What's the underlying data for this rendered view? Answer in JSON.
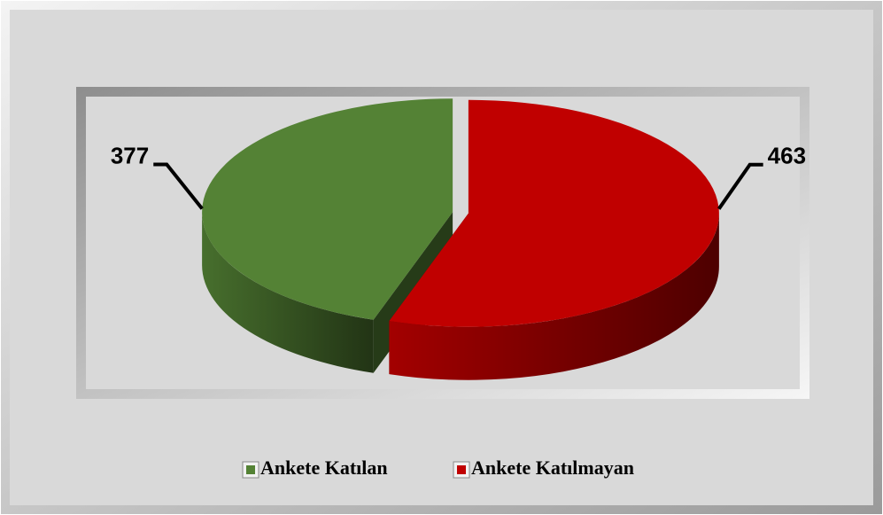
{
  "chart_data": {
    "type": "pie",
    "categories": [
      "Ankete Katılan",
      "Ankete Katılmayan"
    ],
    "values": [
      377,
      463
    ],
    "colors": [
      "#548235",
      "#c00000"
    ],
    "legend": "bottom"
  }
}
